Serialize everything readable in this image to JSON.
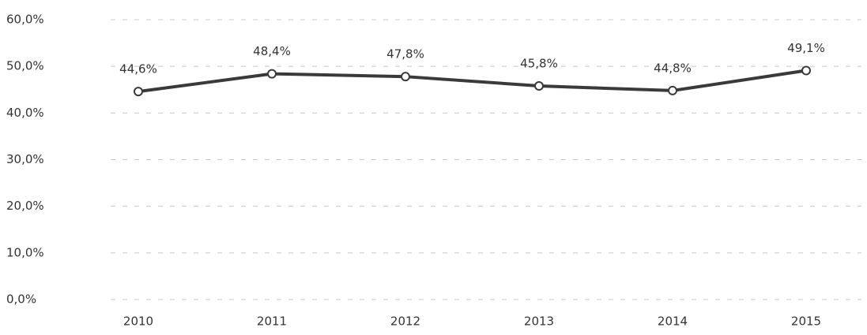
{
  "chart_data": {
    "type": "line",
    "categories": [
      "2010",
      "2011",
      "2012",
      "2013",
      "2014",
      "2015"
    ],
    "values": [
      44.6,
      48.4,
      47.8,
      45.8,
      44.8,
      49.1
    ],
    "value_labels": [
      "44,6%",
      "48,4%",
      "47,8%",
      "45,8%",
      "44,8%",
      "49,1%"
    ],
    "color": "#3a3a3a",
    "ylim": [
      0,
      60
    ],
    "yticks": [
      {
        "value": 0,
        "label": "0,0%"
      },
      {
        "value": 10,
        "label": "10,0%"
      },
      {
        "value": 20,
        "label": "20,0%"
      },
      {
        "value": 30,
        "label": "30,0%"
      },
      {
        "value": 40,
        "label": "40,0%"
      },
      {
        "value": 50,
        "label": "50,0%"
      },
      {
        "value": 60,
        "label": "60,0%"
      }
    ],
    "grid": true
  }
}
